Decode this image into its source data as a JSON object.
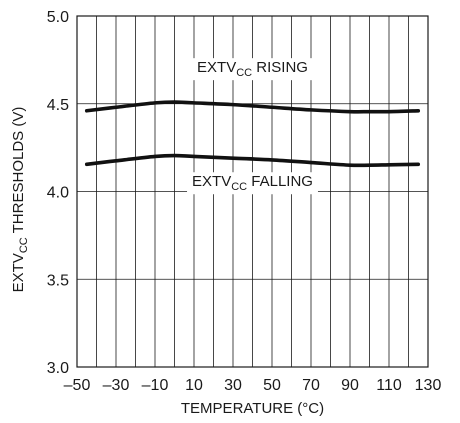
{
  "chart_data": {
    "type": "line",
    "xlabel": "TEMPERATURE (°C)",
    "ylabel": "EXTVCC THRESHOLDS (V)",
    "ylabel_parts": {
      "main_before": "EXTV",
      "sub": "CC",
      "main_after": " THRESHOLDS (V)"
    },
    "xlim": [
      -50,
      130
    ],
    "ylim": [
      3.0,
      5.0
    ],
    "x_ticks": [
      -50,
      -30,
      -10,
      10,
      30,
      50,
      70,
      90,
      110,
      130
    ],
    "x_tick_labels": [
      "–50",
      "–30",
      "–10",
      "10",
      "30",
      "50",
      "70",
      "90",
      "110",
      "130"
    ],
    "y_ticks": [
      3.0,
      3.5,
      4.0,
      4.5,
      5.0
    ],
    "y_tick_labels": [
      "3.0",
      "3.5",
      "4.0",
      "4.5",
      "5.0"
    ],
    "grid": true,
    "series": [
      {
        "name": "EXTVCC RISING",
        "label_parts": {
          "main_before": "EXTV",
          "sub": "CC",
          "main_after": " RISING"
        },
        "x": [
          -45,
          -30,
          -10,
          0,
          10,
          30,
          50,
          70,
          90,
          100,
          110,
          125
        ],
        "y": [
          4.46,
          4.48,
          4.505,
          4.51,
          4.505,
          4.495,
          4.48,
          4.465,
          4.455,
          4.455,
          4.455,
          4.46
        ]
      },
      {
        "name": "EXTVCC FALLING",
        "label_parts": {
          "main_before": "EXTV",
          "sub": "CC",
          "main_after": " FALLING"
        },
        "x": [
          -45,
          -30,
          -10,
          0,
          10,
          30,
          50,
          70,
          90,
          100,
          110,
          125
        ],
        "y": [
          4.155,
          4.175,
          4.2,
          4.205,
          4.2,
          4.19,
          4.18,
          4.165,
          4.15,
          4.15,
          4.152,
          4.155
        ]
      }
    ]
  }
}
